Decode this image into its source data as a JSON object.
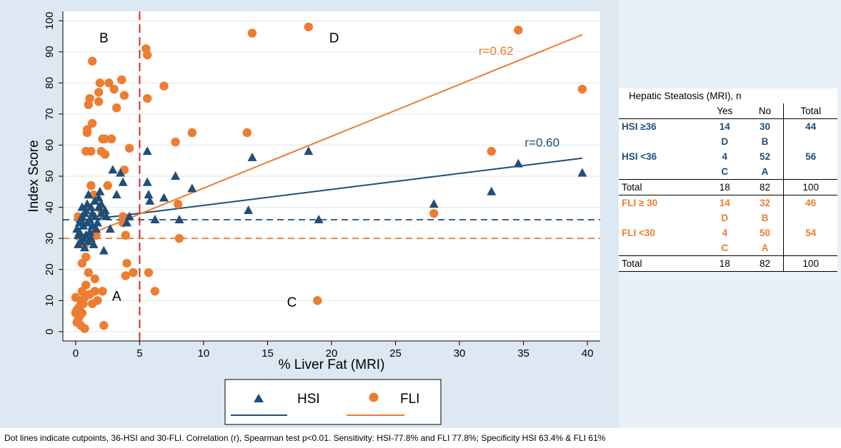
{
  "chart_data": {
    "type": "scatter",
    "xlabel": "% Liver Fat (MRI)",
    "ylabel": "Index Score",
    "xlim": [
      -1,
      41
    ],
    "ylim": [
      -3,
      103
    ],
    "xticks": [
      0,
      5,
      10,
      15,
      20,
      25,
      30,
      35,
      40
    ],
    "yticks": [
      0,
      10,
      20,
      30,
      40,
      50,
      60,
      70,
      80,
      90,
      100
    ],
    "grid": true,
    "legend": "bottom",
    "quadrant_labels": [
      {
        "text": "B",
        "x": 2.2,
        "y": 93
      },
      {
        "text": "D",
        "x": 20.2,
        "y": 93
      },
      {
        "text": "A",
        "x": 3.2,
        "y": 10
      },
      {
        "text": "C",
        "x": 16.9,
        "y": 8
      }
    ],
    "cutpoints": {
      "x": 5,
      "hsi_y": 36,
      "fli_y": 30
    },
    "series": [
      {
        "name": "HSI",
        "marker": "triangle",
        "color": "#1f4e79",
        "points": [
          [
            0.1,
            33
          ],
          [
            0.2,
            28
          ],
          [
            0.2,
            31
          ],
          [
            0.3,
            32
          ],
          [
            0.3,
            35
          ],
          [
            0.4,
            29
          ],
          [
            0.4,
            36
          ],
          [
            0.5,
            37
          ],
          [
            0.5,
            40
          ],
          [
            0.6,
            30
          ],
          [
            0.6,
            34
          ],
          [
            0.7,
            38
          ],
          [
            0.7,
            27
          ],
          [
            0.8,
            39
          ],
          [
            0.8,
            31
          ],
          [
            0.9,
            41
          ],
          [
            0.9,
            35
          ],
          [
            1.0,
            29
          ],
          [
            1.0,
            44
          ],
          [
            1.1,
            36
          ],
          [
            1.1,
            32
          ],
          [
            1.2,
            40
          ],
          [
            1.2,
            30
          ],
          [
            1.3,
            34
          ],
          [
            1.3,
            38
          ],
          [
            1.4,
            28
          ],
          [
            1.5,
            37
          ],
          [
            1.5,
            42
          ],
          [
            1.6,
            33
          ],
          [
            1.7,
            35
          ],
          [
            1.8,
            40
          ],
          [
            1.8,
            43
          ],
          [
            1.9,
            45
          ],
          [
            2.0,
            41
          ],
          [
            2.0,
            38
          ],
          [
            2.2,
            26
          ],
          [
            2.3,
            39
          ],
          [
            2.4,
            37
          ],
          [
            2.7,
            33
          ],
          [
            2.9,
            52
          ],
          [
            3.2,
            44
          ],
          [
            3.5,
            51
          ],
          [
            3.7,
            48
          ],
          [
            4.0,
            35
          ],
          [
            4.2,
            37
          ],
          [
            5.6,
            58
          ],
          [
            5.6,
            48
          ],
          [
            5.7,
            44
          ],
          [
            5.8,
            42
          ],
          [
            6.2,
            36
          ],
          [
            6.9,
            43
          ],
          [
            7.8,
            50
          ],
          [
            8.1,
            36
          ],
          [
            9.1,
            46
          ],
          [
            13.5,
            39
          ],
          [
            13.8,
            56
          ],
          [
            18.2,
            58
          ],
          [
            19.0,
            36
          ],
          [
            28.0,
            41
          ],
          [
            32.5,
            45
          ],
          [
            34.6,
            54
          ],
          [
            39.6,
            51
          ]
        ],
        "fit_line": [
          [
            0,
            35.5
          ],
          [
            39.6,
            55.8
          ]
        ],
        "r_label": "r=0.60",
        "r_label_pos": [
          35.1,
          59.5
        ]
      },
      {
        "name": "FLI",
        "marker": "circle",
        "color": "#ed7d31",
        "points": [
          [
            0.0,
            6
          ],
          [
            0.0,
            11
          ],
          [
            0.1,
            3
          ],
          [
            0.1,
            7
          ],
          [
            0.2,
            37
          ],
          [
            0.2,
            4
          ],
          [
            0.3,
            8
          ],
          [
            0.3,
            5
          ],
          [
            0.4,
            10
          ],
          [
            0.4,
            2
          ],
          [
            0.5,
            13
          ],
          [
            0.5,
            6
          ],
          [
            0.5,
            22
          ],
          [
            0.6,
            30
          ],
          [
            0.6,
            9
          ],
          [
            0.7,
            11
          ],
          [
            0.7,
            28
          ],
          [
            0.7,
            1
          ],
          [
            0.8,
            15
          ],
          [
            0.8,
            24
          ],
          [
            0.8,
            58
          ],
          [
            0.9,
            64
          ],
          [
            0.9,
            65
          ],
          [
            1.0,
            73
          ],
          [
            1.0,
            19
          ],
          [
            1.1,
            75
          ],
          [
            1.1,
            12
          ],
          [
            1.2,
            47
          ],
          [
            1.2,
            58
          ],
          [
            1.3,
            87
          ],
          [
            1.3,
            67
          ],
          [
            1.3,
            9
          ],
          [
            1.4,
            44
          ],
          [
            1.4,
            33
          ],
          [
            1.5,
            13
          ],
          [
            1.5,
            17
          ],
          [
            1.6,
            31
          ],
          [
            1.7,
            10
          ],
          [
            1.8,
            77
          ],
          [
            1.8,
            74
          ],
          [
            1.9,
            80
          ],
          [
            2.0,
            39
          ],
          [
            2.0,
            58
          ],
          [
            2.1,
            62
          ],
          [
            2.1,
            13
          ],
          [
            2.2,
            2
          ],
          [
            2.3,
            62
          ],
          [
            2.3,
            57
          ],
          [
            2.5,
            47
          ],
          [
            2.6,
            80
          ],
          [
            2.8,
            62
          ],
          [
            3.0,
            78
          ],
          [
            3.2,
            72
          ],
          [
            3.6,
            81
          ],
          [
            3.7,
            37
          ],
          [
            3.7,
            35
          ],
          [
            3.8,
            76
          ],
          [
            3.8,
            52
          ],
          [
            3.9,
            31
          ],
          [
            3.9,
            18
          ],
          [
            4.0,
            22
          ],
          [
            4.2,
            59
          ],
          [
            4.5,
            19
          ],
          [
            5.5,
            91
          ],
          [
            5.6,
            75
          ],
          [
            5.6,
            89
          ],
          [
            5.7,
            19
          ],
          [
            6.2,
            13
          ],
          [
            6.9,
            79
          ],
          [
            7.8,
            61
          ],
          [
            8.0,
            41
          ],
          [
            8.1,
            30
          ],
          [
            9.1,
            64
          ],
          [
            13.4,
            64
          ],
          [
            13.8,
            96
          ],
          [
            18.2,
            98
          ],
          [
            18.9,
            10
          ],
          [
            28.0,
            38
          ],
          [
            32.5,
            58
          ],
          [
            34.6,
            97
          ],
          [
            39.6,
            78
          ]
        ],
        "fit_line": [
          [
            0,
            29.5
          ],
          [
            39.6,
            95.5
          ]
        ],
        "r_label": "r=0.62",
        "r_label_pos": [
          31.5,
          89
        ]
      }
    ]
  },
  "table": {
    "title": "Hepatic Steatosis (MRI), n",
    "columns": [
      "Yes",
      "No",
      "Total"
    ],
    "rows": [
      {
        "label": "HSI ≥36",
        "yes": "14",
        "no": "30",
        "total": "44",
        "style": "hsi"
      },
      {
        "label": "",
        "yes": "D",
        "no": "B",
        "total": "",
        "style": "hsi"
      },
      {
        "label": "HSI <36",
        "yes": "4",
        "no": "52",
        "total": "56",
        "style": "hsi"
      },
      {
        "label": "",
        "yes": "C",
        "no": "A",
        "total": "",
        "style": "hsi"
      },
      {
        "label": "Total",
        "yes": "18",
        "no": "82",
        "total": "100",
        "style": "plain"
      },
      {
        "label": "FLI ≥ 30",
        "yes": "14",
        "no": "32",
        "total": "46",
        "style": "fli"
      },
      {
        "label": "",
        "yes": "D",
        "no": "B",
        "total": "",
        "style": "fli"
      },
      {
        "label": "FLI <30",
        "yes": "4",
        "no": "50",
        "total": "54",
        "style": "fli"
      },
      {
        "label": "",
        "yes": "C",
        "no": "A",
        "total": "",
        "style": "fli"
      },
      {
        "label": "Total",
        "yes": "18",
        "no": "82",
        "total": "100",
        "style": "plain"
      }
    ]
  },
  "footnote": "Dot lines indicate cutpoints, 36-HSI and 30-FLI. Correlation (r), Spearman test p<0.01. Sensitivity: HSI-77.8% and FLI 77.8%; Specificity HSI 63.4% & FLI 61%",
  "colors": {
    "hsi": "#1f4e79",
    "fli": "#ed7d31",
    "cutpoint_vertical": "#d62828",
    "grid": "#dde6ee"
  }
}
